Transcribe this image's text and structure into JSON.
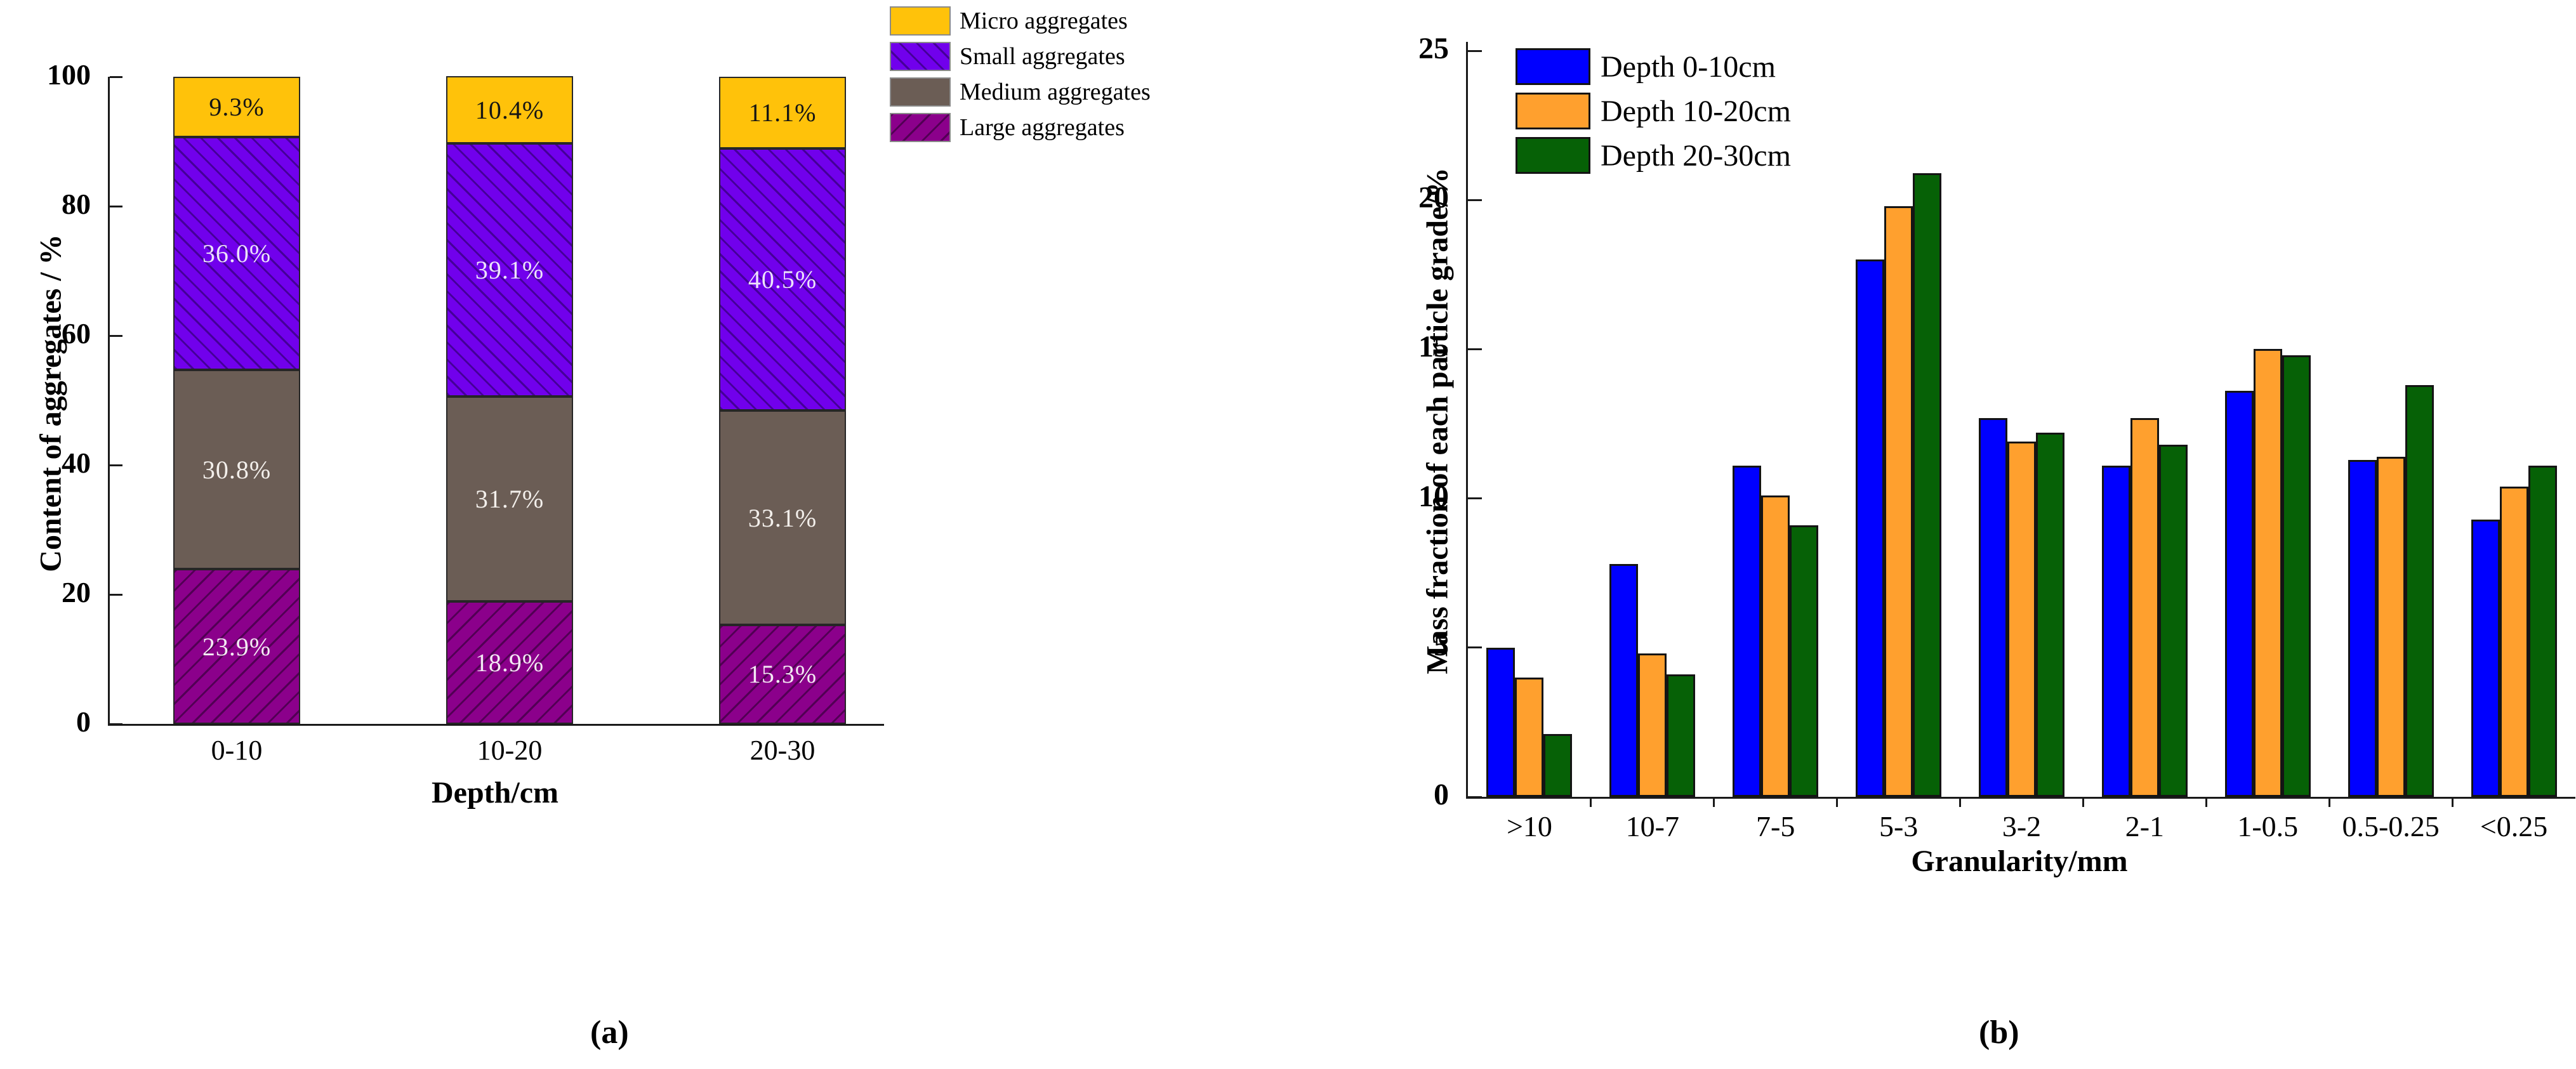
{
  "figure": {
    "caption_a": "(a)",
    "caption_b": "(b)"
  },
  "chart_data": [
    {
      "id": "a",
      "type": "bar",
      "subtype": "stacked-vertical",
      "xlabel": "Depth/cm",
      "ylabel": "Content of aggregates / %",
      "categories": [
        "0-10",
        "10-20",
        "20-30"
      ],
      "y_ticks": [
        0,
        20,
        40,
        60,
        80,
        100
      ],
      "ylim": [
        0,
        100
      ],
      "grid": false,
      "legend_position": "outside-top-right",
      "legend_order": [
        "Micro aggregates",
        "Small aggregates",
        "Medium aggregates",
        "Large aggregates"
      ],
      "series": [
        {
          "name": "Large aggregates",
          "color": "#8B008B",
          "hatch": "/",
          "label_color": "#f3e9f3",
          "values": [
            23.9,
            18.9,
            15.3
          ]
        },
        {
          "name": "Medium aggregates",
          "color": "#6B5D55",
          "hatch": "none",
          "label_color": "#f3efeb",
          "values": [
            30.8,
            31.7,
            33.1
          ]
        },
        {
          "name": "Small aggregates",
          "color": "#7100EC",
          "hatch": "\\",
          "label_color": "#ece2fa",
          "values": [
            36.0,
            39.1,
            40.5
          ]
        },
        {
          "name": "Micro aggregates",
          "color": "#FFC20A",
          "hatch": "none",
          "label_color": "#151515",
          "values": [
            9.3,
            10.4,
            11.1
          ]
        }
      ]
    },
    {
      "id": "b",
      "type": "bar",
      "subtype": "grouped-vertical",
      "xlabel": "Granularity/mm",
      "ylabel": "Mass fraction of each particle grade/%",
      "categories": [
        ">10",
        "10-7",
        "7-5",
        "5-3",
        "3-2",
        "2-1",
        "1-0.5",
        "0.5-0.25",
        "<0.25"
      ],
      "y_ticks": [
        0,
        5,
        10,
        15,
        20,
        25
      ],
      "ylim": [
        0,
        25.3
      ],
      "grid": false,
      "legend_position": "inside-top-left",
      "series": [
        {
          "name": "Depth 0-10cm",
          "color": "#0000FF",
          "values": [
            5.0,
            7.8,
            11.1,
            18.0,
            12.7,
            11.1,
            13.6,
            11.3,
            9.3
          ]
        },
        {
          "name": "Depth 10-20cm",
          "color": "#FFA02E",
          "values": [
            4.0,
            4.8,
            10.1,
            19.8,
            11.9,
            12.7,
            15.0,
            11.4,
            10.4
          ]
        },
        {
          "name": "Depth 20-30cm",
          "color": "#066106",
          "values": [
            2.1,
            4.1,
            9.1,
            20.9,
            12.2,
            11.8,
            14.8,
            13.8,
            11.1
          ]
        }
      ]
    }
  ]
}
